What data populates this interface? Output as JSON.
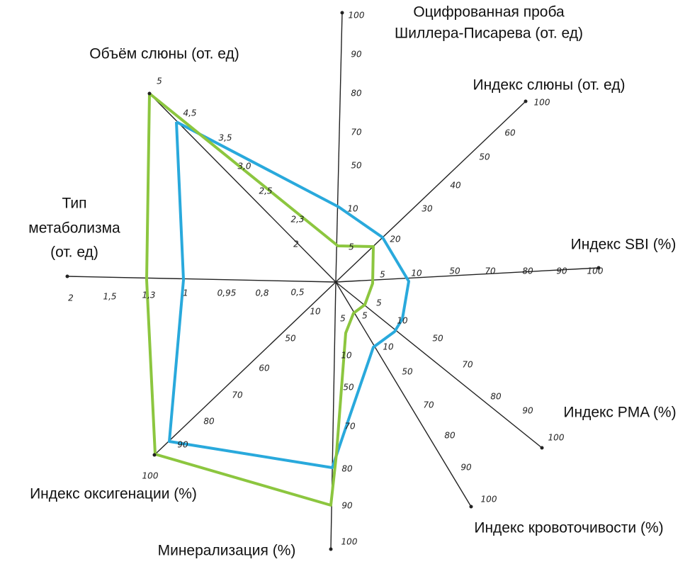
{
  "axes": [
    {
      "label": [
        "Оцифрованная проба",
        "Шиллера-Писарева (от. ед)"
      ],
      "ticks": [
        "100",
        "90",
        "80",
        "70",
        "50",
        "10",
        "5"
      ]
    },
    {
      "label": [
        "Индекс слюны (от. ед)"
      ],
      "ticks": [
        "20",
        "30",
        "40",
        "50",
        "60",
        "100"
      ]
    },
    {
      "label": [
        "Индекс SBI (%)"
      ],
      "ticks": [
        "5",
        "10",
        "50",
        "70",
        "80",
        "90",
        "100"
      ]
    },
    {
      "label": [
        "Индекс PMA (%)"
      ],
      "ticks": [
        "5",
        "10",
        "50",
        "70",
        "80",
        "90",
        "100"
      ]
    },
    {
      "label": [
        "Индекс кровоточивости (%)"
      ],
      "ticks": [
        "5",
        "10",
        "50",
        "70",
        "80",
        "90",
        "100"
      ]
    },
    {
      "label": [
        "Минерализация (%)"
      ],
      "ticks": [
        "5",
        "10",
        "50",
        "70",
        "80",
        "90",
        "100"
      ]
    },
    {
      "label": [
        "Индекс оксигенации (%)"
      ],
      "ticks": [
        "10",
        "50",
        "60",
        "70",
        "80",
        "90",
        "100"
      ]
    },
    {
      "label": [
        "Тип",
        "метаболизма",
        "(от. ед)"
      ],
      "ticks": [
        "0,5",
        "0,8",
        "0,95",
        "1",
        "1,3",
        "1,5",
        "2"
      ]
    },
    {
      "label": [
        "Объём слюны (от. ед)"
      ],
      "ticks": [
        "2",
        "2,3",
        "2,5",
        "3,0",
        "3,5",
        "4,5",
        "5"
      ]
    }
  ]
}
